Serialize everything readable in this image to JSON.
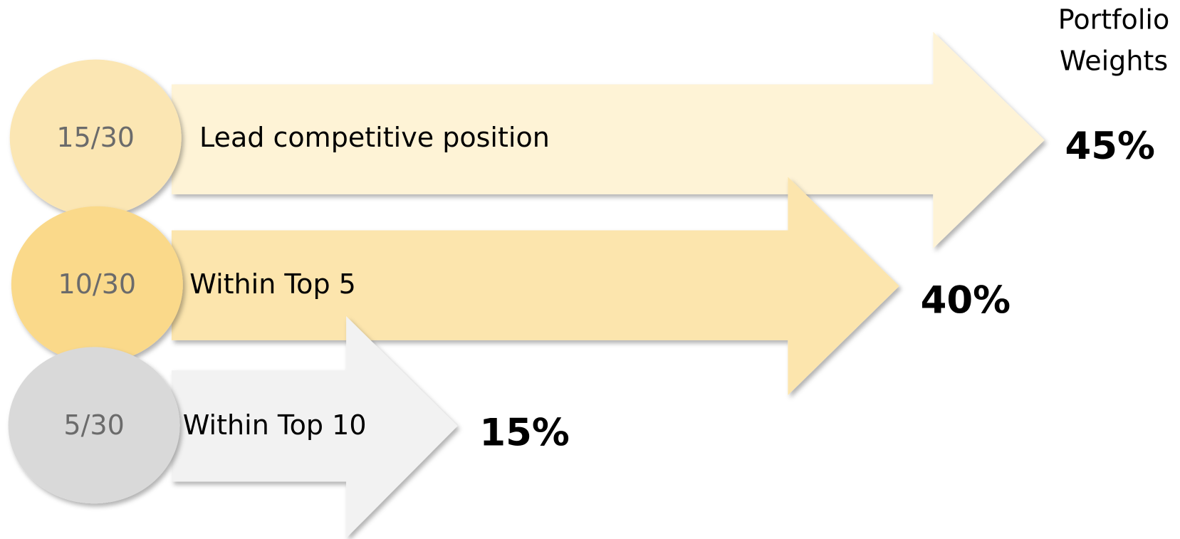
{
  "header": {
    "title_lines": [
      "Portfolio",
      "Weights"
    ]
  },
  "rows": [
    {
      "ratio": "15/30",
      "label": "Lead competitive position",
      "weight": "45%"
    },
    {
      "ratio": "10/30",
      "label": "Within Top 5",
      "weight": "40%"
    },
    {
      "ratio": "5/30",
      "label": "Within Top 10",
      "weight": "15%"
    }
  ]
}
